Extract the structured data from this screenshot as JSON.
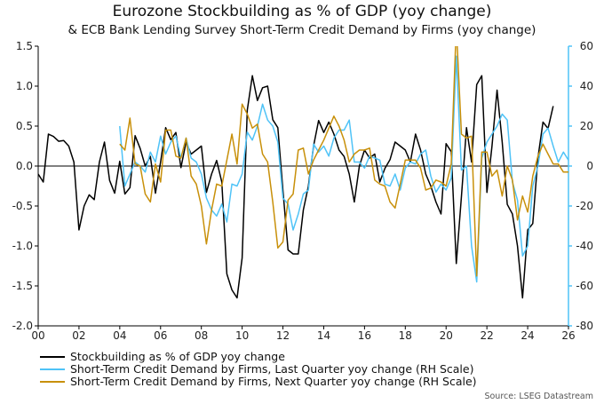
{
  "chart_data": {
    "type": "line",
    "title": "Eurozone Stockbuilding as % of GDP (yoy change)",
    "subtitle": "& ECB Bank Lending Survey Short-Term Credit Demand by Firms (yoy change)",
    "source": "Source: LSEG Datastream",
    "x_ticks": [
      "00",
      "02",
      "04",
      "06",
      "08",
      "10",
      "12",
      "14",
      "16",
      "18",
      "20",
      "22",
      "24",
      "26"
    ],
    "xlim": [
      2000,
      2026
    ],
    "left_axis": {
      "ylim": [
        -2.0,
        1.5
      ],
      "ticks": [
        "1.5",
        "1.0",
        "0.5",
        "0.0",
        "-0.5",
        "-1.0",
        "-1.5",
        "-2.0"
      ]
    },
    "right_axis": {
      "ylim": [
        -80,
        60
      ],
      "ticks": [
        "60",
        "40",
        "20",
        "0",
        "-20",
        "-40",
        "-60",
        "-80"
      ],
      "color": "#4fc3f7"
    },
    "grid": false,
    "legend_position": "bottom-left",
    "series": [
      {
        "name": "Stockbuilding as % of GDP yoy change",
        "axis": "left",
        "color": "#000000",
        "start": 2000,
        "step": 0.25,
        "values": [
          -0.1,
          -0.2,
          0.4,
          0.37,
          0.31,
          0.32,
          0.25,
          0.05,
          -0.8,
          -0.5,
          -0.36,
          -0.42,
          0.05,
          0.3,
          -0.18,
          -0.34,
          0.06,
          -0.35,
          -0.27,
          0.38,
          0.22,
          0.0,
          0.12,
          -0.34,
          0.05,
          0.48,
          0.33,
          0.42,
          -0.02,
          0.3,
          0.15,
          0.2,
          0.25,
          -0.33,
          -0.1,
          0.07,
          -0.2,
          -1.35,
          -1.55,
          -1.65,
          -1.15,
          0.7,
          1.13,
          0.82,
          0.98,
          1.0,
          0.58,
          0.48,
          -0.3,
          -1.05,
          -1.1,
          -1.1,
          -0.55,
          -0.25,
          0.25,
          0.57,
          0.42,
          0.55,
          0.4,
          0.2,
          0.12,
          -0.1,
          -0.45,
          0.0,
          0.2,
          0.1,
          0.15,
          -0.2,
          -0.03,
          0.08,
          0.3,
          0.25,
          0.2,
          0.05,
          0.4,
          0.2,
          -0.1,
          -0.25,
          -0.45,
          -0.6,
          0.28,
          0.18,
          -1.22,
          -0.38,
          0.48,
          0.05,
          1.02,
          1.13,
          -0.33,
          0.25,
          0.95,
          0.3,
          -0.48,
          -0.6,
          -1.0,
          -1.65,
          -0.8,
          -0.72,
          0.1,
          0.55,
          0.47,
          0.75
        ]
      },
      {
        "name": "Short-Term Credit Demand by Firms, Last Quarter yoy change (RH Scale)",
        "axis": "right",
        "color": "#4fc3f7",
        "start": 2004,
        "step": 0.25,
        "values": [
          20,
          -10,
          -4,
          2,
          0,
          -3,
          7,
          2,
          15,
          6,
          12,
          15,
          4,
          14,
          4,
          2,
          -4,
          -16,
          -22,
          -25,
          -19,
          -28,
          -9,
          -10,
          -4,
          17,
          13,
          20,
          31,
          23,
          20,
          12,
          -16,
          -19,
          -32,
          -24,
          -14,
          -12,
          11,
          7,
          10,
          5,
          14,
          18,
          18,
          23,
          2,
          2,
          -1,
          5,
          4,
          3,
          -9,
          -10,
          -4,
          -12,
          -1,
          2,
          1,
          6,
          8,
          -5,
          -13,
          -9,
          -12,
          -6,
          55,
          -2,
          0,
          -40,
          -58,
          4,
          12,
          16,
          20,
          26,
          23,
          -8,
          -17,
          -45,
          -40,
          -10,
          0,
          16,
          19,
          10,
          2,
          7,
          3
        ]
      },
      {
        "name": "Short-Term Credit Demand by Firms, Next Quarter yoy change (RH Scale)",
        "axis": "right",
        "color": "#c8900a",
        "start": 2004,
        "step": 0.25,
        "values": [
          11,
          8,
          24,
          1,
          0,
          -14,
          -18,
          1,
          -8,
          18,
          18,
          5,
          4,
          14,
          -5,
          -9,
          -20,
          -39,
          -22,
          -9,
          -10,
          3,
          16,
          1,
          31,
          26,
          19,
          21,
          6,
          2,
          -18,
          -41,
          -38,
          -17,
          -14,
          8,
          9,
          -4,
          3,
          8,
          13,
          19,
          25,
          20,
          13,
          2,
          6,
          8,
          8,
          9,
          -7,
          -9,
          -10,
          -18,
          -21,
          -9,
          3,
          3,
          3,
          -1,
          -12,
          -11,
          -7,
          -8,
          -10,
          1,
          70,
          16,
          14,
          15,
          -55,
          7,
          7,
          -5,
          -2,
          -15,
          0,
          -7,
          -27,
          -15,
          -23,
          -5,
          5,
          11,
          6,
          1,
          1,
          -3,
          -3
        ]
      }
    ]
  }
}
